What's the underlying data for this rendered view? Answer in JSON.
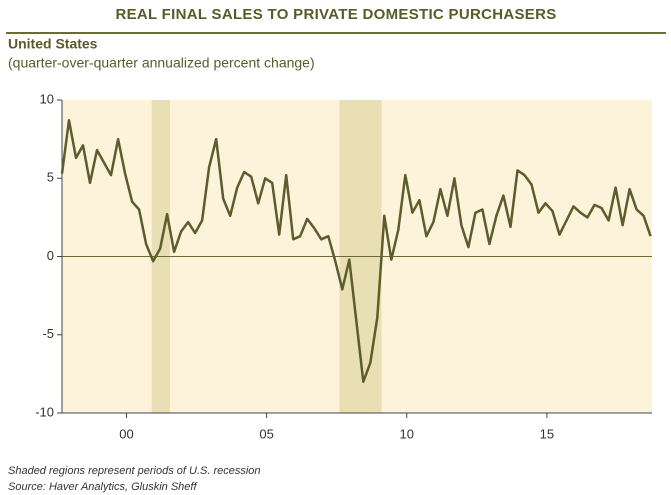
{
  "chart_data": {
    "type": "line",
    "title": "REAL FINAL SALES TO PRIVATE DOMESTIC PURCHASERS",
    "subtitle": "United States",
    "axis_note": "(quarter-over-quarter annualized percent change)",
    "footnotes": [
      "Shaded regions represent periods of U.S. recession",
      "Source: Haver Analytics, Gluskin Sheff"
    ],
    "x": [
      1997.7,
      1997.95,
      1998.2,
      1998.45,
      1998.7,
      1998.95,
      1999.2,
      1999.45,
      1999.7,
      1999.95,
      2000.2,
      2000.45,
      2000.7,
      2000.95,
      2001.2,
      2001.45,
      2001.7,
      2001.95,
      2002.2,
      2002.45,
      2002.7,
      2002.95,
      2003.2,
      2003.45,
      2003.7,
      2003.95,
      2004.2,
      2004.45,
      2004.7,
      2004.95,
      2005.2,
      2005.45,
      2005.7,
      2005.95,
      2006.2,
      2006.45,
      2006.7,
      2006.95,
      2007.2,
      2007.45,
      2007.7,
      2007.95,
      2008.2,
      2008.45,
      2008.7,
      2008.95,
      2009.2,
      2009.45,
      2009.7,
      2009.95,
      2010.2,
      2010.45,
      2010.7,
      2010.95,
      2011.2,
      2011.45,
      2011.7,
      2011.95,
      2012.2,
      2012.45,
      2012.7,
      2012.95,
      2013.2,
      2013.45,
      2013.7,
      2013.95,
      2014.2,
      2014.45,
      2014.7,
      2014.95,
      2015.2,
      2015.45,
      2015.7,
      2015.95,
      2016.2,
      2016.45,
      2016.7,
      2016.95,
      2017.2,
      2017.45,
      2017.7,
      2017.95,
      2018.2,
      2018.45,
      2018.7
    ],
    "series": [
      {
        "color": "#5c5c2c",
        "values": [
          5.3,
          8.7,
          6.3,
          7.1,
          4.7,
          6.8,
          6.0,
          5.2,
          7.5,
          5.3,
          3.5,
          3.0,
          0.8,
          -0.3,
          0.5,
          2.7,
          0.3,
          1.6,
          2.2,
          1.5,
          2.3,
          5.7,
          7.5,
          3.7,
          2.6,
          4.4,
          5.4,
          5.1,
          3.4,
          5.0,
          4.7,
          1.4,
          5.2,
          1.1,
          1.3,
          2.4,
          1.8,
          1.1,
          1.3,
          -0.3,
          -2.1,
          -0.2,
          -4.1,
          -8.0,
          -6.8,
          -3.9,
          2.6,
          -0.2,
          1.7,
          5.2,
          2.8,
          3.6,
          1.3,
          2.2,
          4.3,
          2.6,
          5.0,
          2.0,
          0.6,
          2.8,
          3.0,
          0.8,
          2.6,
          3.9,
          1.9,
          5.5,
          5.2,
          4.6,
          2.8,
          3.4,
          2.9,
          1.4,
          2.3,
          3.2,
          2.8,
          2.5,
          3.3,
          3.1,
          2.3,
          4.4,
          2.0,
          4.3,
          3.0,
          2.6,
          1.3
        ]
      }
    ],
    "recessions": [
      [
        2000.9,
        2001.55
      ],
      [
        2007.6,
        2009.1
      ]
    ],
    "recession_color": "#e8dfb4",
    "background": "#fcf3da",
    "xlim": [
      1997.7,
      2018.75
    ],
    "xticks": [
      {
        "value": 2000,
        "label": "00"
      },
      {
        "value": 2005,
        "label": "05"
      },
      {
        "value": 2010,
        "label": "10"
      },
      {
        "value": 2015,
        "label": "15"
      }
    ],
    "ylim": [
      -10,
      10
    ],
    "yticks": [
      10,
      5,
      0,
      -5,
      -10
    ]
  }
}
